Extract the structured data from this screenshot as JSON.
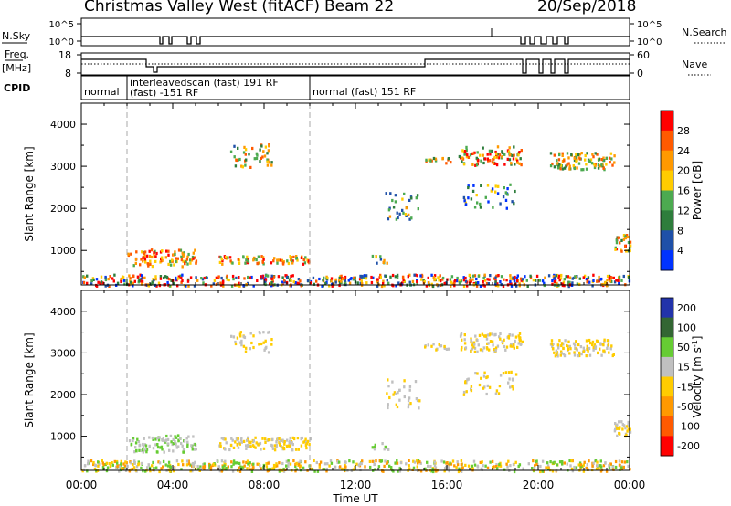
{
  "header": {
    "station": "Christmas Valley West (fitACF)",
    "beam": "Beam 22",
    "date": "20/Sep/2018"
  },
  "strip_labels": {
    "nsky": "N.Sky",
    "nsky_ticks": [
      "10^5",
      "10^0"
    ],
    "nsearch": "N.Search",
    "nsearch_ticks": [
      "10^5",
      "10^0"
    ],
    "freq": "Freq.",
    "freq_unit": "[MHz]",
    "freq_ticks": [
      "18",
      "8"
    ],
    "nave": "Nave",
    "nave_ticks": [
      "60",
      "0"
    ],
    "cpid": "CPID"
  },
  "cpid_modes": [
    {
      "label": "normal",
      "start": 0,
      "end": 2
    },
    {
      "label": "interleavedscan (fast) 191 RF",
      "sublabel": "(fast) -151 RF",
      "start": 2,
      "end": 10
    },
    {
      "label": "normal (fast) 151 RF",
      "start": 10,
      "end": 24
    }
  ],
  "colors": {
    "power": [
      "#0033ff",
      "#1f50a8",
      "#2e7d3c",
      "#4caa50",
      "#ffcc00",
      "#ff9900",
      "#ff5a00",
      "#ff0000"
    ],
    "velocity": [
      "#2233aa",
      "#336633",
      "#66cc33",
      "#c0c0c0",
      "#ffcc00",
      "#ff9900",
      "#ff5a00",
      "#ff0000"
    ]
  },
  "chart_data": [
    {
      "type": "heatmap",
      "ylabel": "Slant Range [km]",
      "xlabel": "Time UT",
      "xlim": [
        0,
        24
      ],
      "ylim": [
        180,
        4500
      ],
      "yticks": [
        1000,
        2000,
        3000,
        4000
      ],
      "colorbar": {
        "label": "Power [dB]",
        "ticks": [
          "4",
          "8",
          "12",
          "16",
          "20",
          "24",
          "28"
        ],
        "range": [
          0,
          32
        ]
      },
      "mode_boundaries": [
        2,
        10
      ],
      "patches": [
        {
          "t0": 2.0,
          "t1": 5.0,
          "r0": 650,
          "r1": 1050,
          "dens": 0.55,
          "level": [
            3,
            7
          ]
        },
        {
          "t0": 6.0,
          "t1": 10.0,
          "r0": 700,
          "r1": 900,
          "dens": 0.7,
          "level": [
            3,
            7
          ]
        },
        {
          "t0": 6.5,
          "t1": 8.3,
          "r0": 3000,
          "r1": 3550,
          "dens": 0.3,
          "level": [
            1,
            6
          ]
        },
        {
          "t0": 12.7,
          "t1": 13.4,
          "r0": 700,
          "r1": 900,
          "dens": 0.5,
          "level": [
            1,
            5
          ]
        },
        {
          "t0": 13.3,
          "t1": 14.8,
          "r0": 1700,
          "r1": 2400,
          "dens": 0.2,
          "level": [
            1,
            5
          ]
        },
        {
          "t0": 15.0,
          "t1": 16.2,
          "r0": 3100,
          "r1": 3250,
          "dens": 0.55,
          "level": [
            2,
            6
          ]
        },
        {
          "t0": 16.5,
          "t1": 19.3,
          "r0": 3050,
          "r1": 3500,
          "dens": 0.5,
          "level": [
            2,
            8
          ]
        },
        {
          "t0": 16.7,
          "t1": 19.0,
          "r0": 2000,
          "r1": 2600,
          "dens": 0.2,
          "level": [
            0,
            4
          ]
        },
        {
          "t0": 20.5,
          "t1": 23.3,
          "r0": 2950,
          "r1": 3350,
          "dens": 0.6,
          "level": [
            2,
            6
          ]
        },
        {
          "t0": 23.3,
          "t1": 24.0,
          "r0": 1000,
          "r1": 1400,
          "dens": 0.7,
          "level": [
            2,
            7
          ]
        },
        {
          "t0": 0.0,
          "t1": 24.0,
          "r0": 180,
          "r1": 450,
          "dens": 0.6,
          "level": [
            0,
            8
          ]
        }
      ]
    },
    {
      "type": "heatmap",
      "ylabel": "Slant Range [km]",
      "xlabel": "Time UT",
      "xlim": [
        0,
        24
      ],
      "ylim": [
        180,
        4500
      ],
      "yticks": [
        1000,
        2000,
        3000,
        4000
      ],
      "xticks": [
        "00:00",
        "04:00",
        "08:00",
        "12:00",
        "16:00",
        "20:00",
        "00:00"
      ],
      "colorbar": {
        "label": "Velocity [m s-1]",
        "ticks": [
          "200",
          "100",
          "50",
          "15",
          "-15",
          "-50",
          "-100",
          "-200"
        ],
        "range": [
          -250,
          250
        ]
      },
      "mode_boundaries": [
        2,
        10
      ],
      "patches": [
        {
          "t0": 2.0,
          "t1": 5.0,
          "r0": 650,
          "r1": 1050,
          "dens": 0.55,
          "level": [
            2,
            3
          ]
        },
        {
          "t0": 6.0,
          "t1": 10.0,
          "r0": 700,
          "r1": 1000,
          "dens": 0.7,
          "level": [
            3,
            4
          ]
        },
        {
          "t0": 6.5,
          "t1": 8.3,
          "r0": 3000,
          "r1": 3550,
          "dens": 0.25,
          "level": [
            3,
            4
          ]
        },
        {
          "t0": 12.7,
          "t1": 13.4,
          "r0": 700,
          "r1": 900,
          "dens": 0.5,
          "level": [
            2,
            3
          ]
        },
        {
          "t0": 13.3,
          "t1": 14.8,
          "r0": 1700,
          "r1": 2400,
          "dens": 0.2,
          "level": [
            3,
            4
          ]
        },
        {
          "t0": 15.0,
          "t1": 16.2,
          "r0": 3100,
          "r1": 3250,
          "dens": 0.55,
          "level": [
            3,
            4
          ]
        },
        {
          "t0": 16.5,
          "t1": 19.3,
          "r0": 3050,
          "r1": 3500,
          "dens": 0.5,
          "level": [
            3,
            4
          ]
        },
        {
          "t0": 16.7,
          "t1": 19.0,
          "r0": 2000,
          "r1": 2600,
          "dens": 0.2,
          "level": [
            3,
            4
          ]
        },
        {
          "t0": 20.5,
          "t1": 23.3,
          "r0": 2950,
          "r1": 3350,
          "dens": 0.6,
          "level": [
            3,
            4
          ]
        },
        {
          "t0": 23.3,
          "t1": 24.0,
          "r0": 1000,
          "r1": 1400,
          "dens": 0.7,
          "level": [
            3,
            4
          ]
        },
        {
          "t0": 0.0,
          "t1": 24.0,
          "r0": 180,
          "r1": 450,
          "dens": 0.6,
          "level": [
            2,
            5
          ]
        }
      ]
    }
  ]
}
